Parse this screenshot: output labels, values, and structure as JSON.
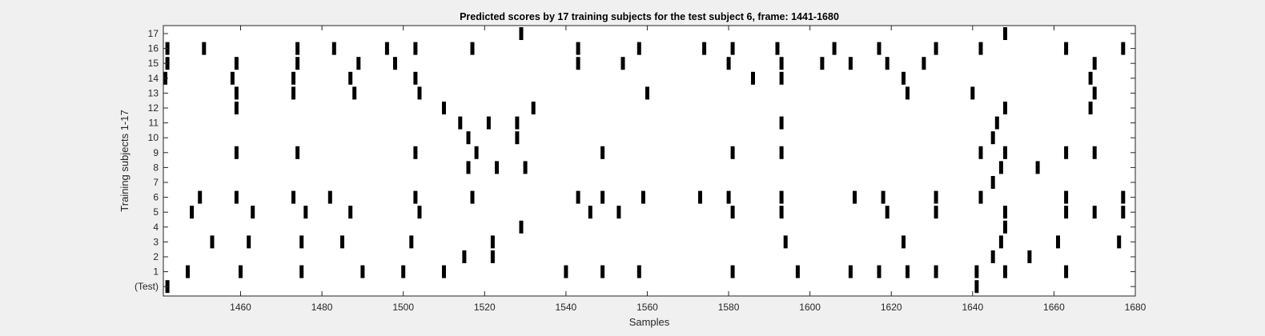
{
  "chart_data": {
    "type": "scatter",
    "marker": "vertical-bar",
    "title": "Predicted scores by 17 training subjects for the test subject 6, frame: 1441-1680",
    "xlabel": "Samples",
    "ylabel": "Training subjects 1-17",
    "xlim": [
      1441,
      1680
    ],
    "x_ticks": [
      1460,
      1480,
      1500,
      1520,
      1540,
      1560,
      1580,
      1600,
      1620,
      1640,
      1660,
      1680
    ],
    "y_tick_labels": [
      "(Test)",
      "1",
      "2",
      "3",
      "4",
      "5",
      "6",
      "7",
      "8",
      "9",
      "10",
      "11",
      "12",
      "13",
      "14",
      "15",
      "16",
      "17"
    ],
    "grid": false,
    "colors": {
      "marker": "#000000",
      "plot_bg": "#ffffff",
      "figure_bg": "#f0f0f0"
    },
    "series": [
      {
        "row": 0,
        "x": [
          1442,
          1641
        ]
      },
      {
        "row": 1,
        "x": [
          1447,
          1460,
          1475,
          1490,
          1500,
          1510,
          1540,
          1549,
          1558,
          1581,
          1597,
          1610,
          1617,
          1624,
          1631,
          1641,
          1648,
          1663
        ]
      },
      {
        "row": 2,
        "x": [
          1515,
          1522,
          1645,
          1654
        ]
      },
      {
        "row": 3,
        "x": [
          1453,
          1462,
          1475,
          1485,
          1502,
          1522,
          1594,
          1623,
          1647,
          1661,
          1676
        ]
      },
      {
        "row": 4,
        "x": [
          1529,
          1648
        ]
      },
      {
        "row": 5,
        "x": [
          1448,
          1463,
          1476,
          1487,
          1504,
          1546,
          1553,
          1581,
          1593,
          1619,
          1631,
          1648,
          1663,
          1670,
          1677
        ]
      },
      {
        "row": 6,
        "x": [
          1450,
          1459,
          1473,
          1482,
          1503,
          1517,
          1543,
          1549,
          1559,
          1573,
          1580,
          1593,
          1611,
          1618,
          1631,
          1642,
          1663,
          1677
        ]
      },
      {
        "row": 7,
        "x": [
          1645
        ]
      },
      {
        "row": 8,
        "x": [
          1516,
          1523,
          1530,
          1647,
          1656
        ]
      },
      {
        "row": 9,
        "x": [
          1459,
          1474,
          1503,
          1518,
          1549,
          1581,
          1593,
          1642,
          1648,
          1663,
          1670
        ]
      },
      {
        "row": 10,
        "x": [
          1516,
          1528,
          1645
        ]
      },
      {
        "row": 11,
        "x": [
          1514,
          1521,
          1528,
          1593,
          1646
        ]
      },
      {
        "row": 12,
        "x": [
          1459,
          1510,
          1532,
          1648,
          1669
        ]
      },
      {
        "row": 13,
        "x": [
          1459,
          1473,
          1488,
          1504,
          1560,
          1624,
          1640,
          1670
        ]
      },
      {
        "row": 14,
        "x": [
          1441,
          1458,
          1473,
          1487,
          1503,
          1586,
          1593,
          1623,
          1669
        ]
      },
      {
        "row": 15,
        "x": [
          1442,
          1459,
          1474,
          1489,
          1498,
          1543,
          1554,
          1580,
          1593,
          1603,
          1610,
          1619,
          1628,
          1670
        ]
      },
      {
        "row": 16,
        "x": [
          1442,
          1451,
          1474,
          1483,
          1496,
          1503,
          1517,
          1543,
          1558,
          1574,
          1581,
          1592,
          1606,
          1617,
          1631,
          1642,
          1663,
          1677
        ]
      },
      {
        "row": 17,
        "x": [
          1529,
          1648
        ]
      }
    ]
  }
}
